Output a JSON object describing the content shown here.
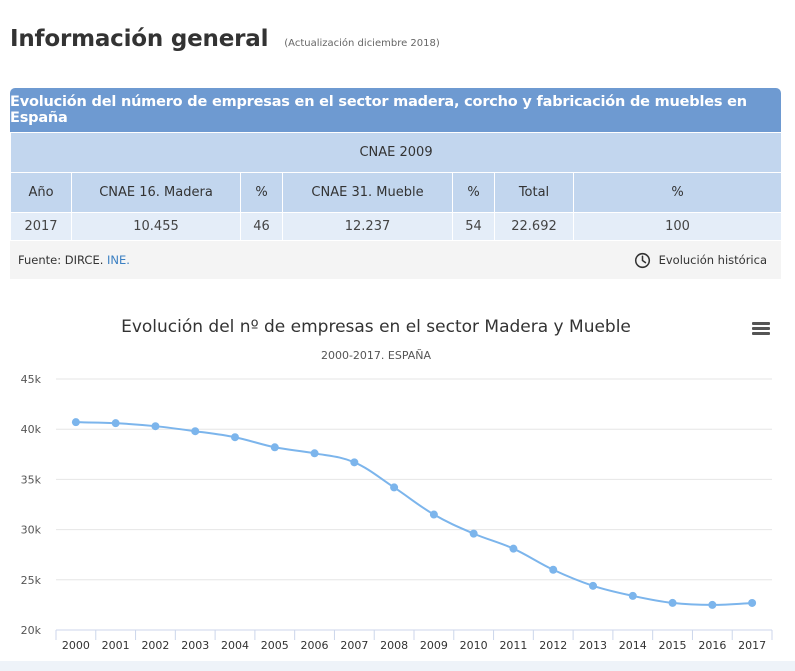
{
  "header": {
    "title": "Información general",
    "update": "(Actualización diciembre 2018)"
  },
  "table": {
    "title": "Evolución del número de empresas en el sector madera, corcho y fabricación de muebles en España",
    "group_header": "CNAE 2009",
    "columns": [
      "Año",
      "CNAE 16. Madera",
      "%",
      "CNAE 31. Mueble",
      "%",
      "Total",
      "%"
    ],
    "rows": [
      [
        "2017",
        "10.455",
        "46",
        "12.237",
        "54",
        "22.692",
        "100"
      ]
    ],
    "source_label": "Fuente: DIRCE.",
    "source_link": "INE.",
    "history_label": "Evolución histórica"
  },
  "colors": {
    "accent": "#6e9ad1",
    "line": "#7cb5ec"
  },
  "chart_data": {
    "type": "line",
    "title": "Evolución del nº de empresas en el sector Madera y Mueble",
    "subtitle": "2000-2017. ESPAÑA",
    "categories": [
      "2000",
      "2001",
      "2002",
      "2003",
      "2004",
      "2005",
      "2006",
      "2007",
      "2008",
      "2009",
      "2010",
      "2011",
      "2012",
      "2013",
      "2014",
      "2015",
      "2016",
      "2017"
    ],
    "series": [
      {
        "values": [
          40700,
          40600,
          40300,
          39800,
          39200,
          38200,
          37600,
          36700,
          34200,
          31500,
          29600,
          28100,
          26000,
          24400,
          23400,
          22700,
          22500,
          22692
        ]
      }
    ],
    "ylim": [
      20000,
      45000
    ],
    "yticks": [
      {
        "value": 20000,
        "label": "20k"
      },
      {
        "value": 25000,
        "label": "25k"
      },
      {
        "value": 30000,
        "label": "30k"
      },
      {
        "value": 35000,
        "label": "35k"
      },
      {
        "value": 40000,
        "label": "40k"
      },
      {
        "value": 45000,
        "label": "45k"
      }
    ],
    "grid": true
  }
}
